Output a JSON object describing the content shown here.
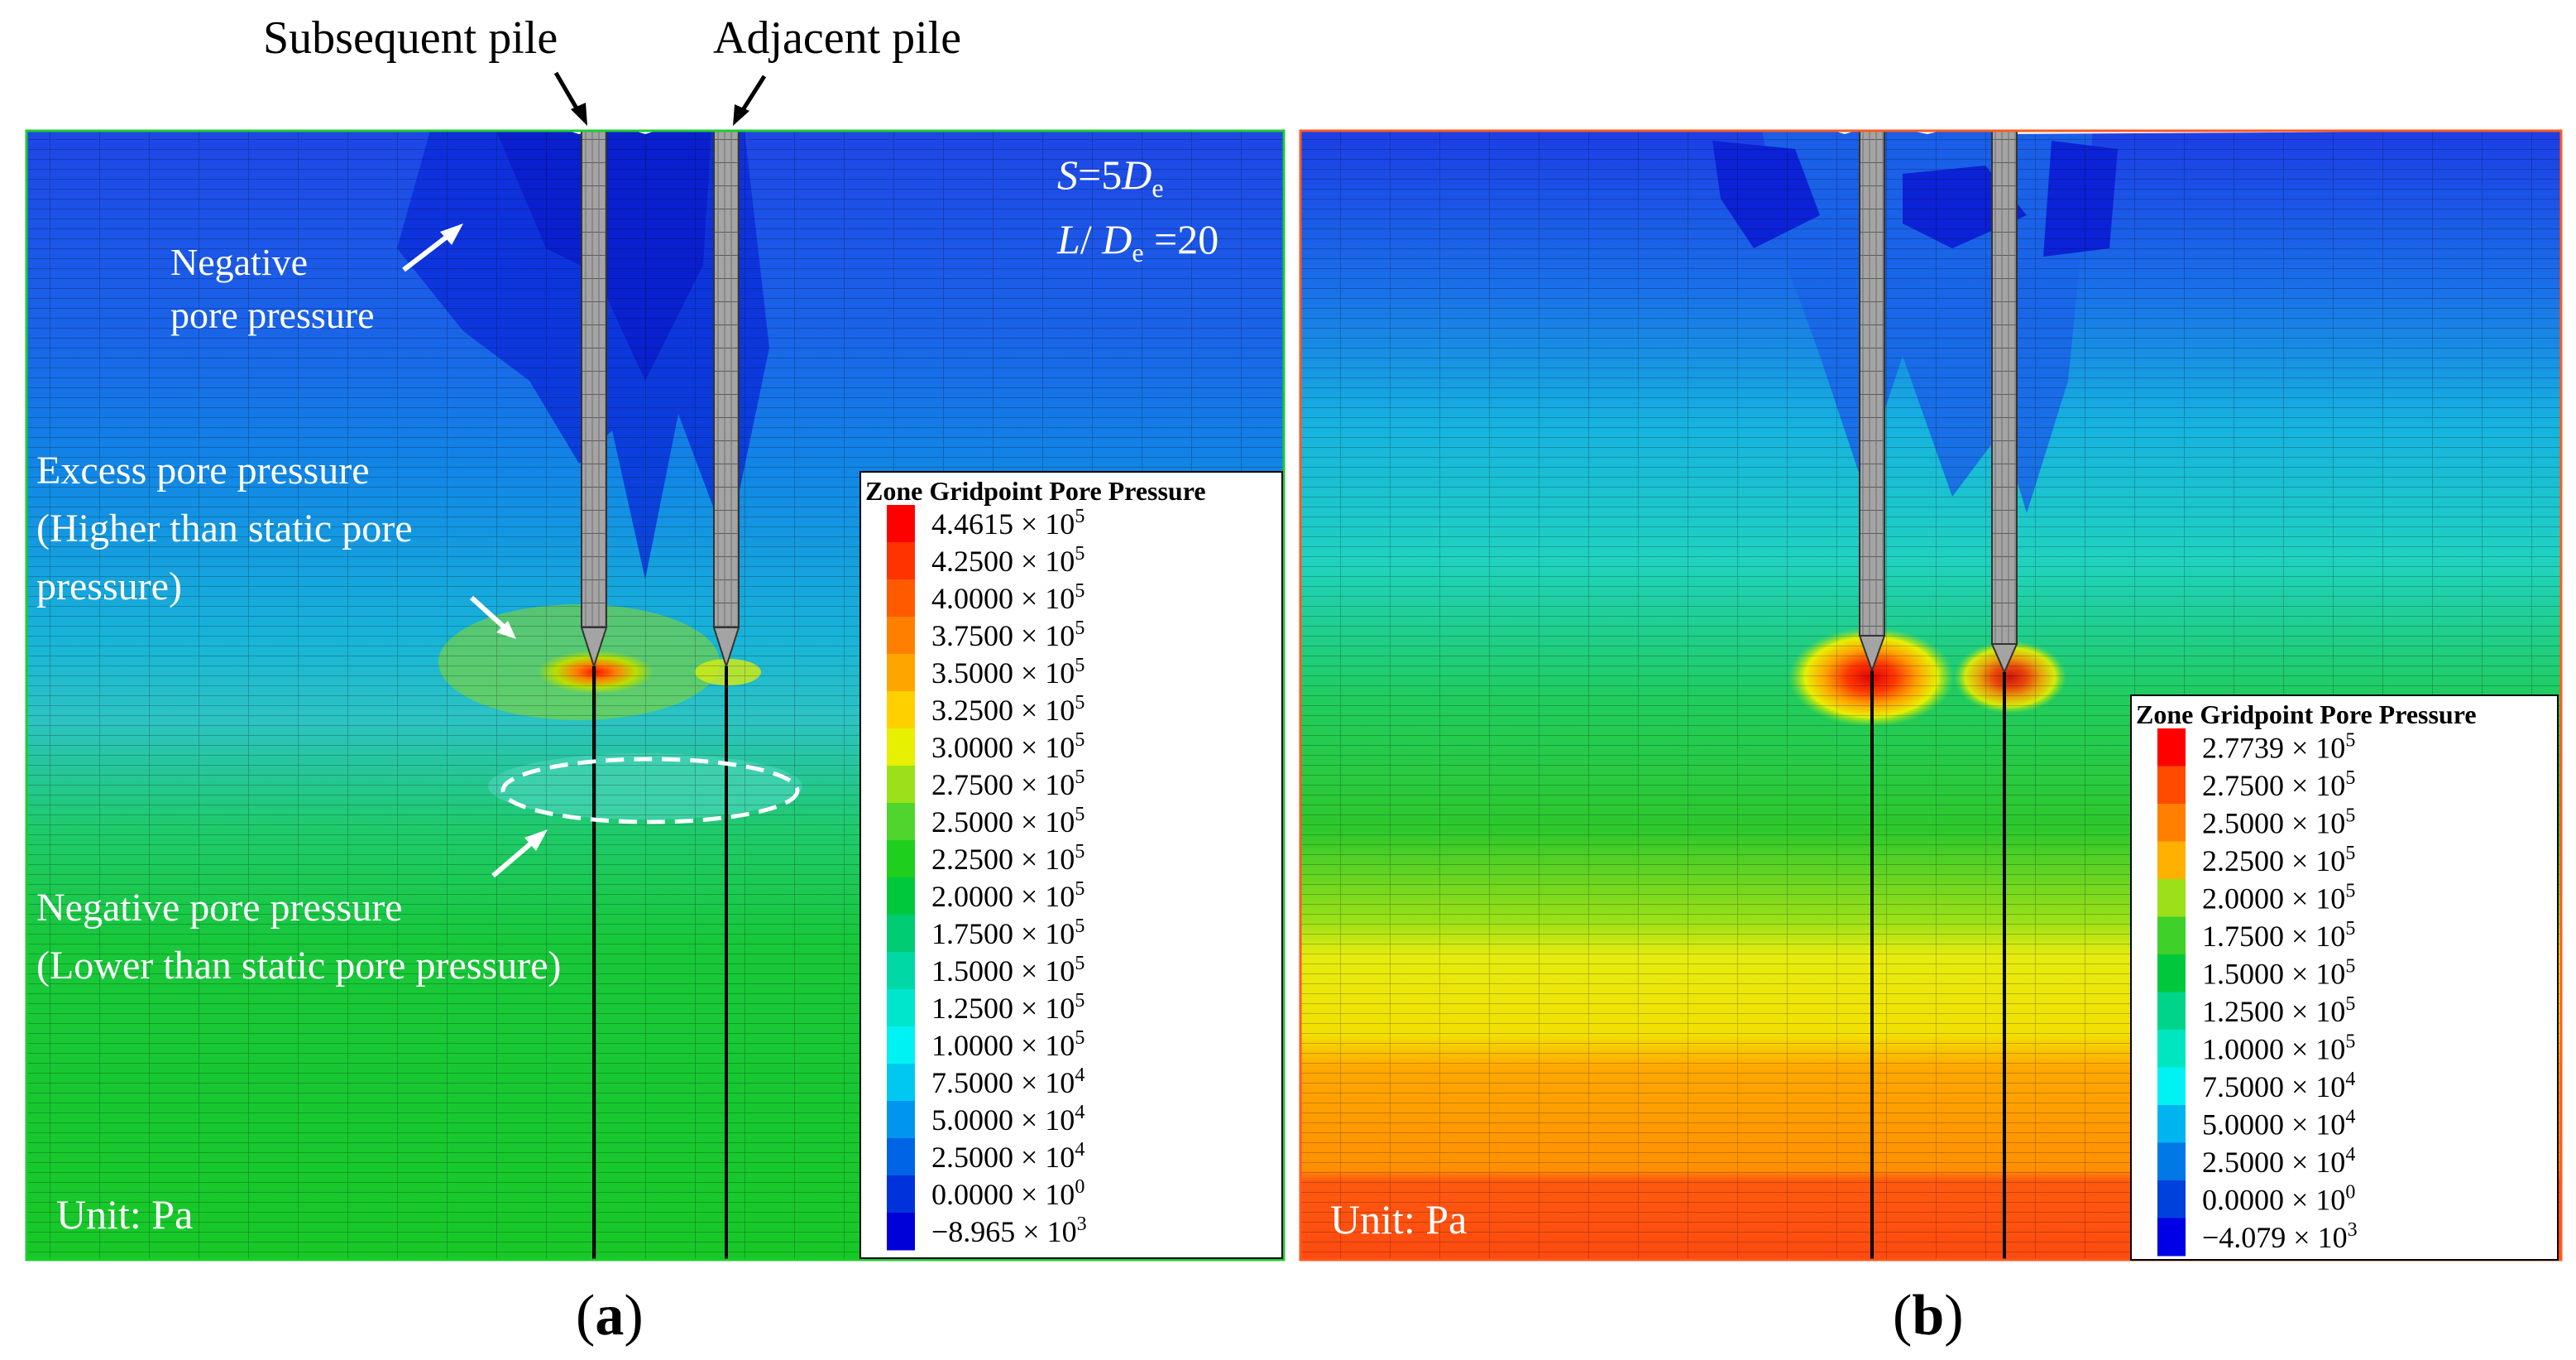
{
  "callouts": {
    "subsequent_pile": "Subsequent pile",
    "adjacent_pile": "Adjacent pile"
  },
  "panel_a": {
    "label": "a",
    "param_s": {
      "var": "S",
      "eq": "=5",
      "sym": "D",
      "sub": "e"
    },
    "param_l": {
      "var": "L",
      "slash": "/ ",
      "sym": "D",
      "sub": "e",
      "eq": " =20"
    },
    "notes": {
      "neg_line1": "Negative",
      "neg_line2": "pore pressure",
      "excess_line1": "Excess pore pressure",
      "excess_line2": "(Higher than static pore",
      "excess_line3": "pressure)",
      "neg2_line1": "Negative pore pressure",
      "neg2_line2": "(Lower than static pore pressure)"
    },
    "unit": "Unit: Pa",
    "legend": {
      "title": "Zone Gridpoint Pore Pressure",
      "entries": [
        {
          "mant": "4.4615",
          "exp": "5",
          "color": "#ff0000"
        },
        {
          "mant": "4.2500",
          "exp": "5",
          "color": "#ff3300"
        },
        {
          "mant": "4.0000",
          "exp": "5",
          "color": "#ff5a00"
        },
        {
          "mant": "3.7500",
          "exp": "5",
          "color": "#ff8000"
        },
        {
          "mant": "3.5000",
          "exp": "5",
          "color": "#ffa500"
        },
        {
          "mant": "3.2500",
          "exp": "5",
          "color": "#ffd000"
        },
        {
          "mant": "3.0000",
          "exp": "5",
          "color": "#e6f000"
        },
        {
          "mant": "2.7500",
          "exp": "5",
          "color": "#9be018"
        },
        {
          "mant": "2.5000",
          "exp": "5",
          "color": "#4fd52d"
        },
        {
          "mant": "2.2500",
          "exp": "5",
          "color": "#1ecf1e"
        },
        {
          "mant": "2.0000",
          "exp": "5",
          "color": "#00c83c"
        },
        {
          "mant": "1.7500",
          "exp": "5",
          "color": "#00cc73"
        },
        {
          "mant": "1.5000",
          "exp": "5",
          "color": "#00d9a6"
        },
        {
          "mant": "1.2500",
          "exp": "5",
          "color": "#00e6cc"
        },
        {
          "mant": "1.0000",
          "exp": "5",
          "color": "#00f2f2"
        },
        {
          "mant": "7.5000",
          "exp": "4",
          "color": "#00c8f0"
        },
        {
          "mant": "5.0000",
          "exp": "4",
          "color": "#0096f0"
        },
        {
          "mant": "2.5000",
          "exp": "4",
          "color": "#0064e6"
        },
        {
          "mant": "0.0000",
          "exp": "0",
          "color": "#0032dc"
        },
        {
          "mant": "−8.965",
          "exp": "3",
          "color": "#0000d8"
        }
      ]
    }
  },
  "panel_b": {
    "label": "b",
    "unit": "Unit: Pa",
    "legend": {
      "title": "Zone Gridpoint Pore Pressure",
      "entries": [
        {
          "mant": "2.7739",
          "exp": "5",
          "color": "#ff0000"
        },
        {
          "mant": "2.7500",
          "exp": "5",
          "color": "#ff4a00"
        },
        {
          "mant": "2.5000",
          "exp": "5",
          "color": "#ff8000"
        },
        {
          "mant": "2.2500",
          "exp": "5",
          "color": "#ffb000"
        },
        {
          "mant": "2.0000",
          "exp": "5",
          "color": "#9be018"
        },
        {
          "mant": "1.7500",
          "exp": "5",
          "color": "#3fd02a"
        },
        {
          "mant": "1.5000",
          "exp": "5",
          "color": "#00c83c"
        },
        {
          "mant": "1.2500",
          "exp": "5",
          "color": "#00d48a"
        },
        {
          "mant": "1.0000",
          "exp": "5",
          "color": "#00e6c0"
        },
        {
          "mant": "7.5000",
          "exp": "4",
          "color": "#00f2f2"
        },
        {
          "mant": "5.0000",
          "exp": "4",
          "color": "#00b4f0"
        },
        {
          "mant": "2.5000",
          "exp": "4",
          "color": "#0078e6"
        },
        {
          "mant": "0.0000",
          "exp": "0",
          "color": "#0040dc"
        },
        {
          "mant": "−4.079",
          "exp": "3",
          "color": "#0000e6"
        }
      ]
    }
  },
  "colors": {
    "text_dark": "#000000",
    "text_light": "#ffffff",
    "pile": "#9a9a9a",
    "dash": "#ffffff"
  }
}
